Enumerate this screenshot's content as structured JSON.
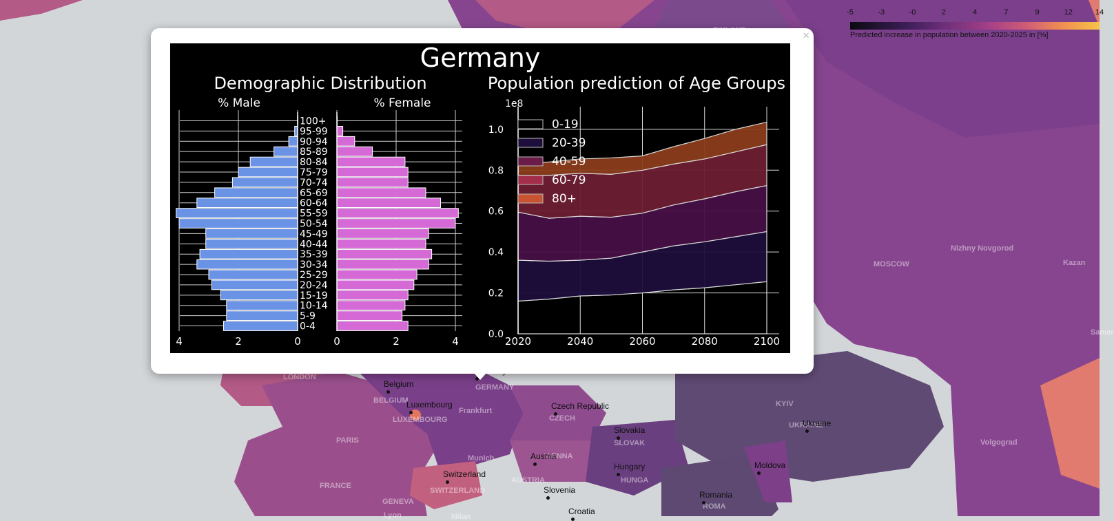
{
  "legend": {
    "ticks": [
      "-5",
      "-3",
      "-0",
      "2",
      "4",
      "7",
      "9",
      "12",
      "14"
    ],
    "caption": "Predicted increase in population between 2020-2025 in [%]"
  },
  "popup": {
    "close_label": "×"
  },
  "map": {
    "place_names": [
      "FINLAND",
      "Nizhny Novgorod",
      "MOSCOW",
      "Kazan",
      "Samar",
      "KYIV",
      "UKRAINE",
      "Volgograd",
      "PARIS",
      "FRANCE",
      "GENEVA",
      "Lyon",
      "Munich",
      "Frankfurt",
      "VIENNA",
      "AUSTRIA",
      "GERMANY",
      "CZECH",
      "SLOVAK",
      "HUNGA",
      "ROMA",
      "SWITZERLAND",
      "BELGIUM",
      "LUXEMBOURG",
      "LONDON",
      "Milan"
    ],
    "countries": [
      "Germany",
      "Belgium",
      "Luxembourg",
      "Czech Republic",
      "Slovakia",
      "Ukraine",
      "Austria",
      "Hungary",
      "Moldova",
      "Switzerland",
      "Slovenia",
      "Romania",
      "Croatia"
    ]
  },
  "chart_data": [
    {
      "type": "bar",
      "title": "Germany",
      "subtitle": "Demographic Distribution",
      "left_label": "% Male",
      "right_label": "% Female",
      "categories": [
        "0-4",
        "5-9",
        "10-14",
        "15-19",
        "20-24",
        "25-29",
        "30-34",
        "35-39",
        "40-44",
        "45-49",
        "50-54",
        "55-59",
        "60-64",
        "65-69",
        "70-74",
        "75-79",
        "80-84",
        "85-89",
        "90-94",
        "95-99",
        "100+"
      ],
      "series": [
        {
          "name": "% Male",
          "values": [
            2.5,
            2.4,
            2.4,
            2.6,
            2.9,
            3.0,
            3.4,
            3.3,
            3.1,
            3.1,
            4.0,
            4.1,
            3.4,
            2.8,
            2.2,
            2.0,
            1.6,
            0.8,
            0.3,
            0.1,
            0.0
          ]
        },
        {
          "name": "% Female",
          "values": [
            2.4,
            2.2,
            2.3,
            2.4,
            2.6,
            2.7,
            3.1,
            3.2,
            3.0,
            3.1,
            4.0,
            4.1,
            3.5,
            3.0,
            2.4,
            2.4,
            2.3,
            1.2,
            0.6,
            0.2,
            0.0
          ]
        }
      ],
      "xlim": [
        0,
        4
      ],
      "xticks": [
        "4",
        "2",
        "0",
        "0",
        "2",
        "4"
      ]
    },
    {
      "type": "area",
      "title": "Population prediction of Age Groups",
      "y_multiplier": "1e8",
      "x": [
        2020,
        2030,
        2040,
        2050,
        2060,
        2070,
        2080,
        2090,
        2100
      ],
      "series": [
        {
          "name": "0-19",
          "values": [
            0.16,
            0.17,
            0.185,
            0.19,
            0.2,
            0.215,
            0.225,
            0.24,
            0.255
          ]
        },
        {
          "name": "20-39",
          "values": [
            0.2,
            0.185,
            0.175,
            0.18,
            0.2,
            0.215,
            0.225,
            0.235,
            0.245
          ]
        },
        {
          "name": "40-59",
          "values": [
            0.235,
            0.21,
            0.215,
            0.2,
            0.19,
            0.2,
            0.21,
            0.22,
            0.225
          ]
        },
        {
          "name": "60-79",
          "values": [
            0.18,
            0.21,
            0.21,
            0.21,
            0.21,
            0.2,
            0.195,
            0.195,
            0.2
          ]
        },
        {
          "name": "80+",
          "values": [
            0.055,
            0.065,
            0.07,
            0.08,
            0.07,
            0.085,
            0.1,
            0.11,
            0.11
          ]
        }
      ],
      "colors": [
        "#000000",
        "#1c0d3b",
        "#470f45",
        "#6e1e33",
        "#8a3c1b"
      ],
      "xlim": [
        2020,
        2100
      ],
      "ylim": [
        0,
        1.05
      ],
      "xticks": [
        2020,
        2040,
        2060,
        2080,
        2100
      ],
      "yticks": [
        "0.0",
        "0.2",
        "0.4",
        "0.6",
        "0.8",
        "1.0"
      ],
      "grid": true,
      "legend": "top-left"
    }
  ]
}
